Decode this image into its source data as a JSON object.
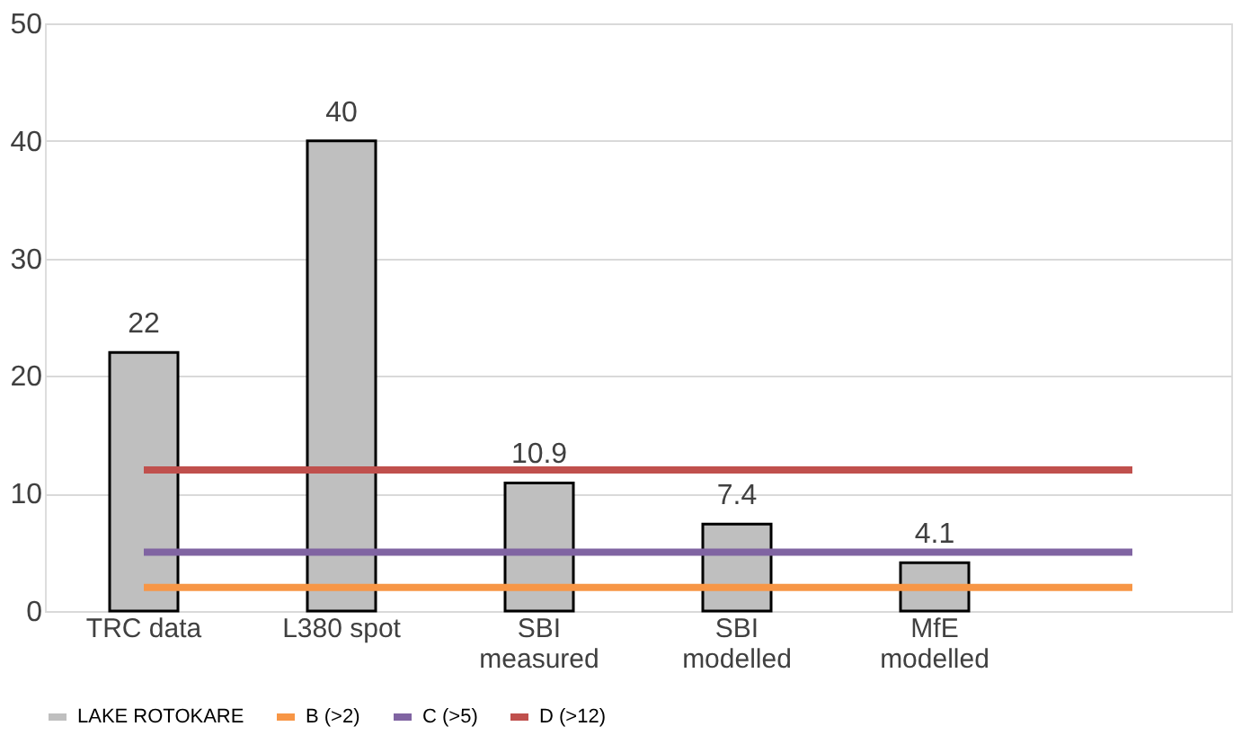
{
  "chart_data": {
    "type": "bar",
    "categories": [
      "TRC data",
      "L380 spot",
      "SBI measured",
      "SBI modelled",
      "MfE modelled",
      null
    ],
    "series": [
      {
        "name": "LAKE ROTOKARE",
        "color": "#bfbfbf",
        "values": [
          22,
          40,
          10.9,
          7.4,
          4.1,
          null
        ],
        "value_labels": [
          "22",
          "40",
          "10.9",
          "7.4",
          "4.1",
          null
        ]
      },
      {
        "name": "B (>2)",
        "type": "line",
        "color": "#f79646",
        "values": [
          2,
          2,
          2,
          2,
          2,
          2
        ]
      },
      {
        "name": "C (>5)",
        "type": "line",
        "color": "#8064a2",
        "values": [
          5,
          5,
          5,
          5,
          5,
          5
        ]
      },
      {
        "name": "D (>12)",
        "type": "line",
        "color": "#c0504d",
        "values": [
          12,
          12,
          12,
          12,
          12,
          12
        ]
      }
    ],
    "ylim": [
      0,
      50
    ],
    "yticks": [
      0,
      10,
      20,
      30,
      40,
      50
    ],
    "grid": "y",
    "legend": "bottom"
  }
}
